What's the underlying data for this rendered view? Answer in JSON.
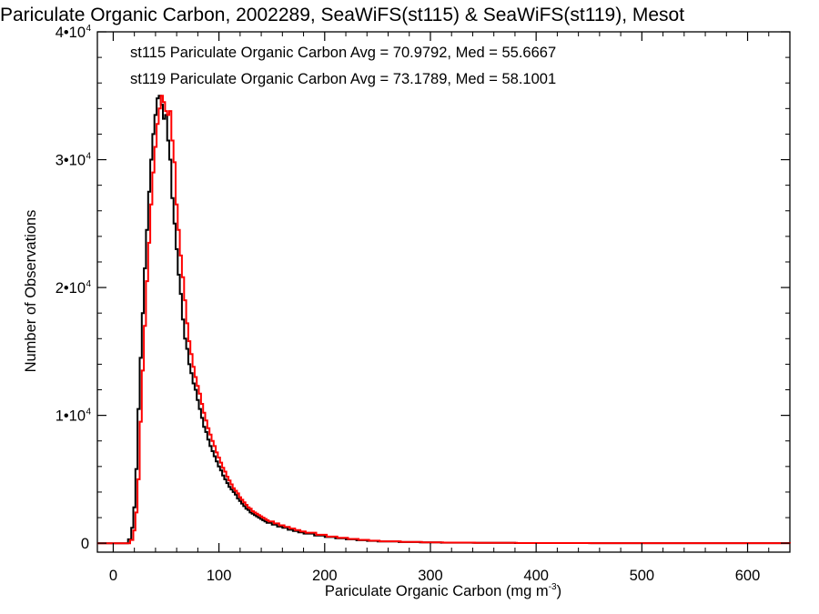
{
  "chart_data": {
    "type": "line",
    "title": "Pariculate Organic Carbon, 2002289, SeaWiFS(st115) & SeaWiFS(st119), Mesot",
    "xlabel_main": "Pariculate Organic Carbon (mg m",
    "xlabel_sup": "-3",
    "xlabel_end": ")",
    "ylabel": "Number of Observations",
    "xlim": [
      -15,
      640
    ],
    "ylim": [
      -700,
      40000
    ],
    "x_ticks": [
      {
        "value": 0,
        "label": "0"
      },
      {
        "value": 100,
        "label": "100"
      },
      {
        "value": 200,
        "label": "200"
      },
      {
        "value": 300,
        "label": "300"
      },
      {
        "value": 400,
        "label": "400"
      },
      {
        "value": 500,
        "label": "500"
      },
      {
        "value": 600,
        "label": "600"
      }
    ],
    "y_ticks": [
      {
        "value": 0,
        "label": "0",
        "sup": ""
      },
      {
        "value": 10000,
        "label": "1•10",
        "sup": "4"
      },
      {
        "value": 20000,
        "label": "2•10",
        "sup": "4"
      },
      {
        "value": 30000,
        "label": "3•10",
        "sup": "4"
      },
      {
        "value": 40000,
        "label": "4•10",
        "sup": "4"
      }
    ],
    "stats": [
      {
        "text": "st115 Pariculate Organic Carbon Avg = 70.9792, Med = 55.6667",
        "color": "#000000"
      },
      {
        "text": "st119 Pariculate Organic Carbon Avg = 73.1789, Med = 58.1001",
        "color": "#ff0000"
      }
    ],
    "series": [
      {
        "color": "#000000",
        "x": [
          -15,
          10,
          14,
          17,
          19,
          21,
          23,
          25,
          27,
          29,
          31,
          33,
          35,
          37,
          39,
          41,
          43,
          45,
          47,
          49,
          51,
          53,
          55,
          57,
          59,
          61,
          63,
          65,
          67,
          69,
          71,
          73,
          75,
          77,
          79,
          81,
          83,
          85,
          87,
          89,
          91,
          93,
          95,
          97,
          99,
          101,
          103,
          105,
          107,
          109,
          111,
          113,
          115,
          117,
          119,
          121,
          123,
          125,
          127,
          129,
          131,
          133,
          135,
          137,
          139,
          141,
          143,
          145,
          150,
          155,
          160,
          165,
          170,
          175,
          180,
          190,
          200,
          210,
          220,
          230,
          240,
          250,
          270,
          290,
          310,
          340,
          380,
          450,
          550,
          640
        ],
        "y": [
          0,
          0,
          300,
          1200,
          2800,
          5800,
          10500,
          14500,
          18000,
          21500,
          24500,
          27500,
          30000,
          32000,
          33500,
          34800,
          35000,
          34300,
          33200,
          33500,
          31500,
          30000,
          27000,
          25000,
          23000,
          21000,
          19500,
          17500,
          16000,
          15200,
          14000,
          13300,
          12500,
          12000,
          11200,
          10500,
          9800,
          9100,
          8700,
          8100,
          7600,
          7200,
          6800,
          6400,
          6000,
          5700,
          5300,
          5000,
          4700,
          4400,
          4200,
          4000,
          3800,
          3500,
          3300,
          3100,
          2900,
          2700,
          2600,
          2400,
          2300,
          2200,
          2100,
          2000,
          1900,
          1800,
          1700,
          1600,
          1450,
          1300,
          1200,
          1050,
          950,
          850,
          750,
          600,
          480,
          380,
          300,
          230,
          180,
          140,
          90,
          60,
          40,
          25,
          12,
          5,
          2,
          0
        ]
      },
      {
        "color": "#ff0000",
        "x": [
          -15,
          12,
          16,
          19,
          21,
          23,
          25,
          27,
          29,
          31,
          33,
          35,
          37,
          39,
          41,
          43,
          45,
          47,
          49,
          51,
          53,
          55,
          57,
          59,
          61,
          63,
          65,
          67,
          69,
          71,
          73,
          75,
          77,
          79,
          81,
          83,
          85,
          87,
          89,
          91,
          93,
          95,
          97,
          99,
          101,
          103,
          105,
          107,
          109,
          111,
          113,
          115,
          117,
          119,
          121,
          123,
          125,
          127,
          129,
          131,
          133,
          135,
          137,
          139,
          141,
          143,
          145,
          147,
          152,
          157,
          162,
          167,
          172,
          177,
          182,
          192,
          202,
          212,
          222,
          232,
          242,
          252,
          272,
          292,
          312,
          342,
          382,
          452,
          552,
          640
        ],
        "y": [
          0,
          0,
          250,
          1000,
          2400,
          5000,
          9500,
          13500,
          17000,
          20500,
          23500,
          26500,
          29000,
          31000,
          32800,
          34000,
          35000,
          34500,
          33800,
          33500,
          33800,
          31500,
          29800,
          26500,
          24500,
          22500,
          20800,
          19000,
          17200,
          15800,
          14800,
          13800,
          13000,
          12300,
          11700,
          10900,
          10200,
          9600,
          9000,
          8500,
          8000,
          7600,
          7100,
          6700,
          6300,
          5900,
          5600,
          5200,
          4900,
          4600,
          4300,
          4100,
          3900,
          3600,
          3400,
          3200,
          3000,
          2800,
          2700,
          2500,
          2400,
          2300,
          2200,
          2100,
          2000,
          1900,
          1800,
          1700,
          1550,
          1400,
          1280,
          1150,
          1020,
          920,
          820,
          660,
          520,
          420,
          330,
          260,
          200,
          150,
          100,
          70,
          45,
          28,
          14,
          6,
          2,
          0
        ]
      }
    ]
  }
}
